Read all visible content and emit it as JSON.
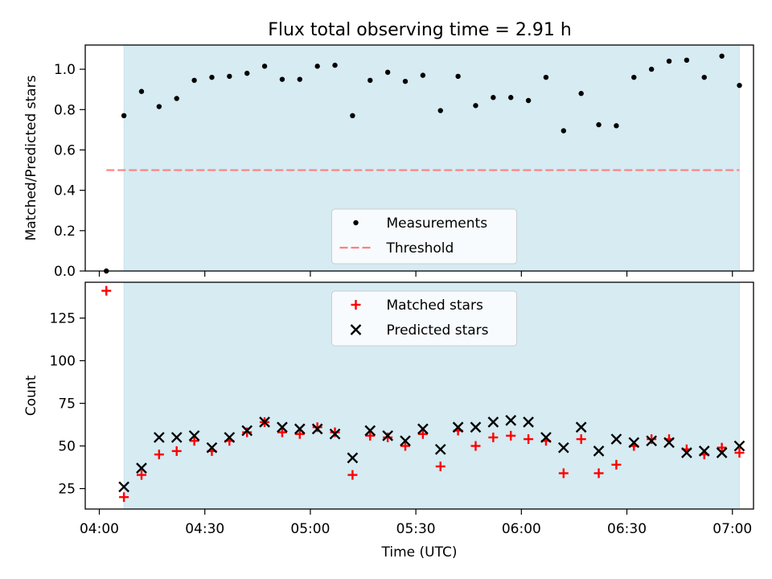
{
  "figure": {
    "title": "Flux total observing time = 2.91 h",
    "colors": {
      "shade": "#add8e6",
      "threshold": "#ff7f7f",
      "measurement": "#000000",
      "matched": "#ff0000",
      "predicted": "#000000"
    }
  },
  "chart_data": [
    {
      "type": "scatter",
      "panel": "top",
      "title": "Flux total observing time = 2.91 h",
      "xlabel": "",
      "ylabel": "Matched/Predicted stars",
      "xlim": [
        "03:56",
        "07:06"
      ],
      "ylim": [
        0,
        1.12
      ],
      "yticks": [
        0.0,
        0.2,
        0.4,
        0.6,
        0.8,
        1.0
      ],
      "ytick_labels": [
        "0.0",
        "0.2",
        "0.4",
        "0.6",
        "0.8",
        "1.0"
      ],
      "shaded_interval": [
        "04:07",
        "07:02"
      ],
      "legend": {
        "placement": "lower-center",
        "entries": [
          "Measurements",
          "Threshold"
        ]
      },
      "threshold": {
        "name": "Threshold",
        "value": 0.5,
        "x_range": [
          "04:02",
          "07:02"
        ]
      },
      "series": [
        {
          "name": "Measurements",
          "x": [
            "04:02",
            "04:07",
            "04:12",
            "04:17",
            "04:22",
            "04:27",
            "04:32",
            "04:37",
            "04:42",
            "04:47",
            "04:52",
            "04:57",
            "05:02",
            "05:07",
            "05:12",
            "05:17",
            "05:22",
            "05:27",
            "05:32",
            "05:37",
            "05:42",
            "05:47",
            "05:52",
            "05:57",
            "06:02",
            "06:07",
            "06:12",
            "06:17",
            "06:22",
            "06:27",
            "06:32",
            "06:37",
            "06:42",
            "06:47",
            "06:52",
            "06:57",
            "07:02"
          ],
          "values": [
            0.0,
            0.77,
            0.89,
            0.815,
            0.855,
            0.945,
            0.96,
            0.965,
            0.98,
            1.015,
            0.95,
            0.95,
            1.015,
            1.02,
            0.77,
            0.945,
            0.985,
            0.94,
            0.97,
            0.795,
            0.965,
            0.82,
            0.86,
            0.86,
            0.845,
            0.96,
            0.695,
            0.88,
            0.725,
            0.72,
            0.96,
            1.0,
            1.04,
            1.045,
            0.96,
            1.065,
            0.92
          ]
        }
      ]
    },
    {
      "type": "scatter",
      "panel": "bottom",
      "title": "",
      "xlabel": "Time (UTC)",
      "ylabel": "Count",
      "xlim": [
        "03:56",
        "07:06"
      ],
      "ylim": [
        13,
        146
      ],
      "yticks": [
        25,
        50,
        75,
        100,
        125
      ],
      "ytick_labels": [
        "25",
        "50",
        "75",
        "100",
        "125"
      ],
      "xticks": [
        "04:00",
        "04:30",
        "05:00",
        "05:30",
        "06:00",
        "06:30",
        "07:00"
      ],
      "xtick_labels": [
        "04:00",
        "04:30",
        "05:00",
        "05:30",
        "06:00",
        "06:30",
        "07:00"
      ],
      "shaded_interval": [
        "04:07",
        "07:02"
      ],
      "legend": {
        "placement": "upper-center",
        "entries": [
          "Matched stars",
          "Predicted stars"
        ]
      },
      "series": [
        {
          "name": "Matched stars",
          "marker": "plus",
          "x": [
            "04:02",
            "04:07",
            "04:12",
            "04:17",
            "04:22",
            "04:27",
            "04:32",
            "04:37",
            "04:42",
            "04:47",
            "04:52",
            "04:57",
            "05:02",
            "05:07",
            "05:12",
            "05:17",
            "05:22",
            "05:27",
            "05:32",
            "05:37",
            "05:42",
            "05:47",
            "05:52",
            "05:57",
            "06:02",
            "06:07",
            "06:12",
            "06:17",
            "06:22",
            "06:27",
            "06:32",
            "06:37",
            "06:42",
            "06:47",
            "06:52",
            "06:57",
            "07:02"
          ],
          "values": [
            141,
            20,
            33,
            45,
            47,
            53,
            47,
            53,
            58,
            64,
            58,
            57,
            61,
            58,
            33,
            56,
            55,
            50,
            57,
            38,
            59,
            50,
            55,
            56,
            54,
            53,
            34,
            54,
            34,
            39,
            50,
            54,
            54,
            48,
            45,
            49,
            46
          ]
        },
        {
          "name": "Predicted stars",
          "marker": "x",
          "x": [
            "04:07",
            "04:12",
            "04:17",
            "04:22",
            "04:27",
            "04:32",
            "04:37",
            "04:42",
            "04:47",
            "04:52",
            "04:57",
            "05:02",
            "05:07",
            "05:12",
            "05:17",
            "05:22",
            "05:27",
            "05:32",
            "05:37",
            "05:42",
            "05:47",
            "05:52",
            "05:57",
            "06:02",
            "06:07",
            "06:12",
            "06:17",
            "06:22",
            "06:27",
            "06:32",
            "06:37",
            "06:42",
            "06:47",
            "06:52",
            "06:57",
            "07:02"
          ],
          "values": [
            26,
            37,
            55,
            55,
            56,
            49,
            55,
            59,
            64,
            61,
            60,
            60,
            57,
            43,
            59,
            56,
            53,
            60,
            48,
            61,
            61,
            64,
            65,
            64,
            55,
            49,
            61,
            47,
            54,
            52,
            53,
            52,
            46,
            47,
            46,
            50
          ]
        }
      ]
    }
  ]
}
